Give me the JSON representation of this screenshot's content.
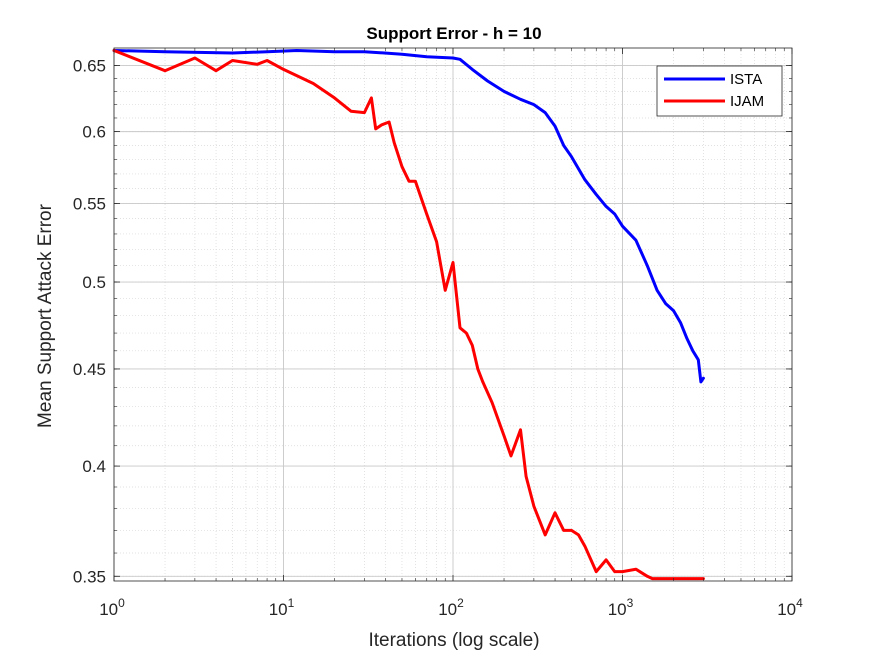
{
  "chart_data": {
    "type": "line",
    "title": "Support Error - h = 10",
    "xlabel": "Iterations (log scale)",
    "ylabel": "Mean Support Attack Error",
    "xscale": "log",
    "yscale": "log",
    "xlim": [
      1,
      10000
    ],
    "ylim": [
      0.348,
      0.664
    ],
    "x_ticks": [
      {
        "value": 1,
        "base": "10",
        "exp": "0"
      },
      {
        "value": 10,
        "base": "10",
        "exp": "1"
      },
      {
        "value": 100,
        "base": "10",
        "exp": "2"
      },
      {
        "value": 1000,
        "base": "10",
        "exp": "3"
      },
      {
        "value": 10000,
        "base": "10",
        "exp": "4"
      }
    ],
    "y_ticks": [
      {
        "value": 0.35,
        "label": "0.35"
      },
      {
        "value": 0.4,
        "label": "0.4"
      },
      {
        "value": 0.45,
        "label": "0.45"
      },
      {
        "value": 0.5,
        "label": "0.5"
      },
      {
        "value": 0.55,
        "label": "0.55"
      },
      {
        "value": 0.6,
        "label": "0.6"
      },
      {
        "value": 0.65,
        "label": "0.65"
      }
    ],
    "grid": true,
    "minor_grid": true,
    "legend_position": "top-right",
    "series": [
      {
        "name": "ISTA",
        "color": "#0000FF",
        "x": [
          1,
          2,
          5,
          8,
          12,
          20,
          30,
          50,
          70,
          100,
          110,
          130,
          160,
          200,
          250,
          300,
          350,
          400,
          450,
          500,
          600,
          700,
          800,
          900,
          1000,
          1200,
          1400,
          1600,
          1800,
          2000,
          2200,
          2400,
          2600,
          2800,
          2900,
          3000
        ],
        "y": [
          0.662,
          0.661,
          0.66,
          0.661,
          0.662,
          0.661,
          0.661,
          0.659,
          0.657,
          0.656,
          0.655,
          0.647,
          0.638,
          0.63,
          0.624,
          0.62,
          0.614,
          0.604,
          0.59,
          0.582,
          0.566,
          0.556,
          0.548,
          0.543,
          0.535,
          0.526,
          0.51,
          0.495,
          0.487,
          0.483,
          0.476,
          0.467,
          0.46,
          0.455,
          0.443,
          0.445
        ]
      },
      {
        "name": "IJAM",
        "color": "#FF0000",
        "x": [
          1,
          2,
          3,
          4,
          5,
          7,
          8,
          10,
          15,
          20,
          25,
          30,
          33,
          35,
          38,
          42,
          45,
          50,
          55,
          60,
          70,
          80,
          90,
          100,
          110,
          120,
          130,
          140,
          150,
          170,
          200,
          220,
          250,
          270,
          300,
          350,
          400,
          450,
          500,
          550,
          600,
          700,
          800,
          900,
          1000,
          1200,
          1400,
          1500,
          2000,
          2500,
          3000
        ],
        "y": [
          0.662,
          0.646,
          0.656,
          0.646,
          0.654,
          0.651,
          0.654,
          0.647,
          0.636,
          0.625,
          0.615,
          0.614,
          0.625,
          0.602,
          0.605,
          0.607,
          0.592,
          0.575,
          0.565,
          0.565,
          0.543,
          0.525,
          0.495,
          0.512,
          0.473,
          0.47,
          0.463,
          0.45,
          0.443,
          0.432,
          0.415,
          0.405,
          0.418,
          0.395,
          0.381,
          0.368,
          0.378,
          0.37,
          0.37,
          0.368,
          0.363,
          0.352,
          0.357,
          0.352,
          0.352,
          0.353,
          0.35,
          0.349,
          0.349,
          0.349,
          0.349
        ]
      }
    ]
  }
}
